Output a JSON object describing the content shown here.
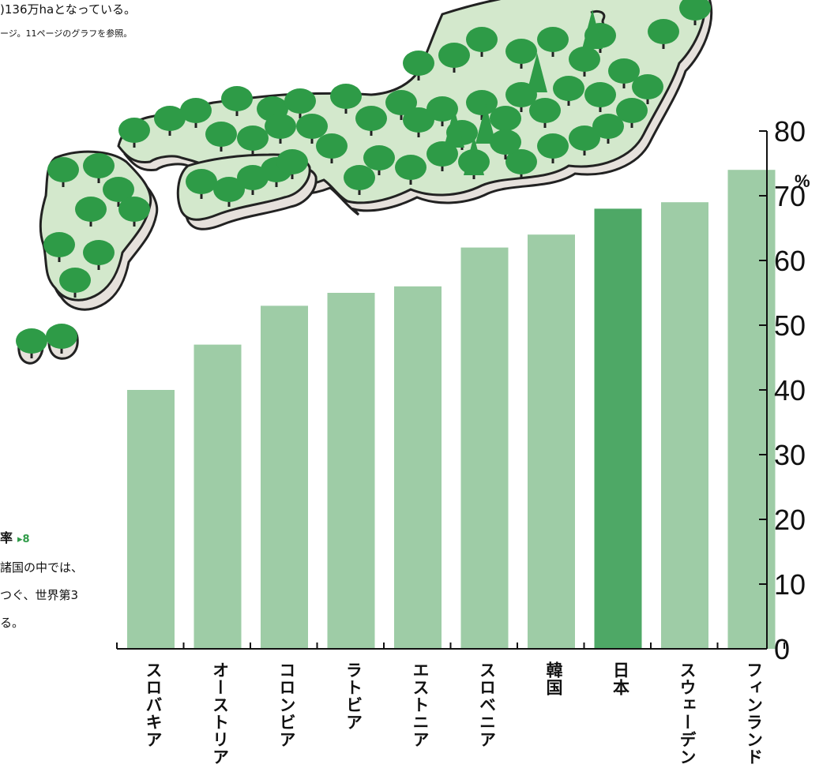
{
  "page_text": {
    "top_line1": ")136万haとなっている。",
    "top_line2": "ージ。11ページのグラフを参照。",
    "side_heading": "率",
    "side_ref": "▸8",
    "side_lines": [
      "諸国の中では、",
      "つぐ、世界第3",
      "る。"
    ]
  },
  "colors": {
    "bar_default": "#9ecca6",
    "bar_highlight": "#4ea866",
    "tree": "#2e9b47",
    "land": "#d3e8cc",
    "land_shadow": "#e6e1dc",
    "outline": "#222222"
  },
  "chart_data": {
    "type": "bar",
    "categories": [
      "スロバキア",
      "オーストリア",
      "コロンビア",
      "ラトビア",
      "エストニア",
      "スロベニア",
      "韓国",
      "日本",
      "スウェーデン",
      "フィンランド"
    ],
    "values": [
      40,
      47,
      53,
      55,
      56,
      62,
      64,
      68,
      69,
      74
    ],
    "highlight": "日本",
    "y_ticks": [
      0,
      10,
      20,
      30,
      40,
      50,
      60,
      70,
      80
    ],
    "ylim": [
      0,
      80
    ],
    "y_unit": "%",
    "y_axis_side": "right",
    "grid": false
  }
}
